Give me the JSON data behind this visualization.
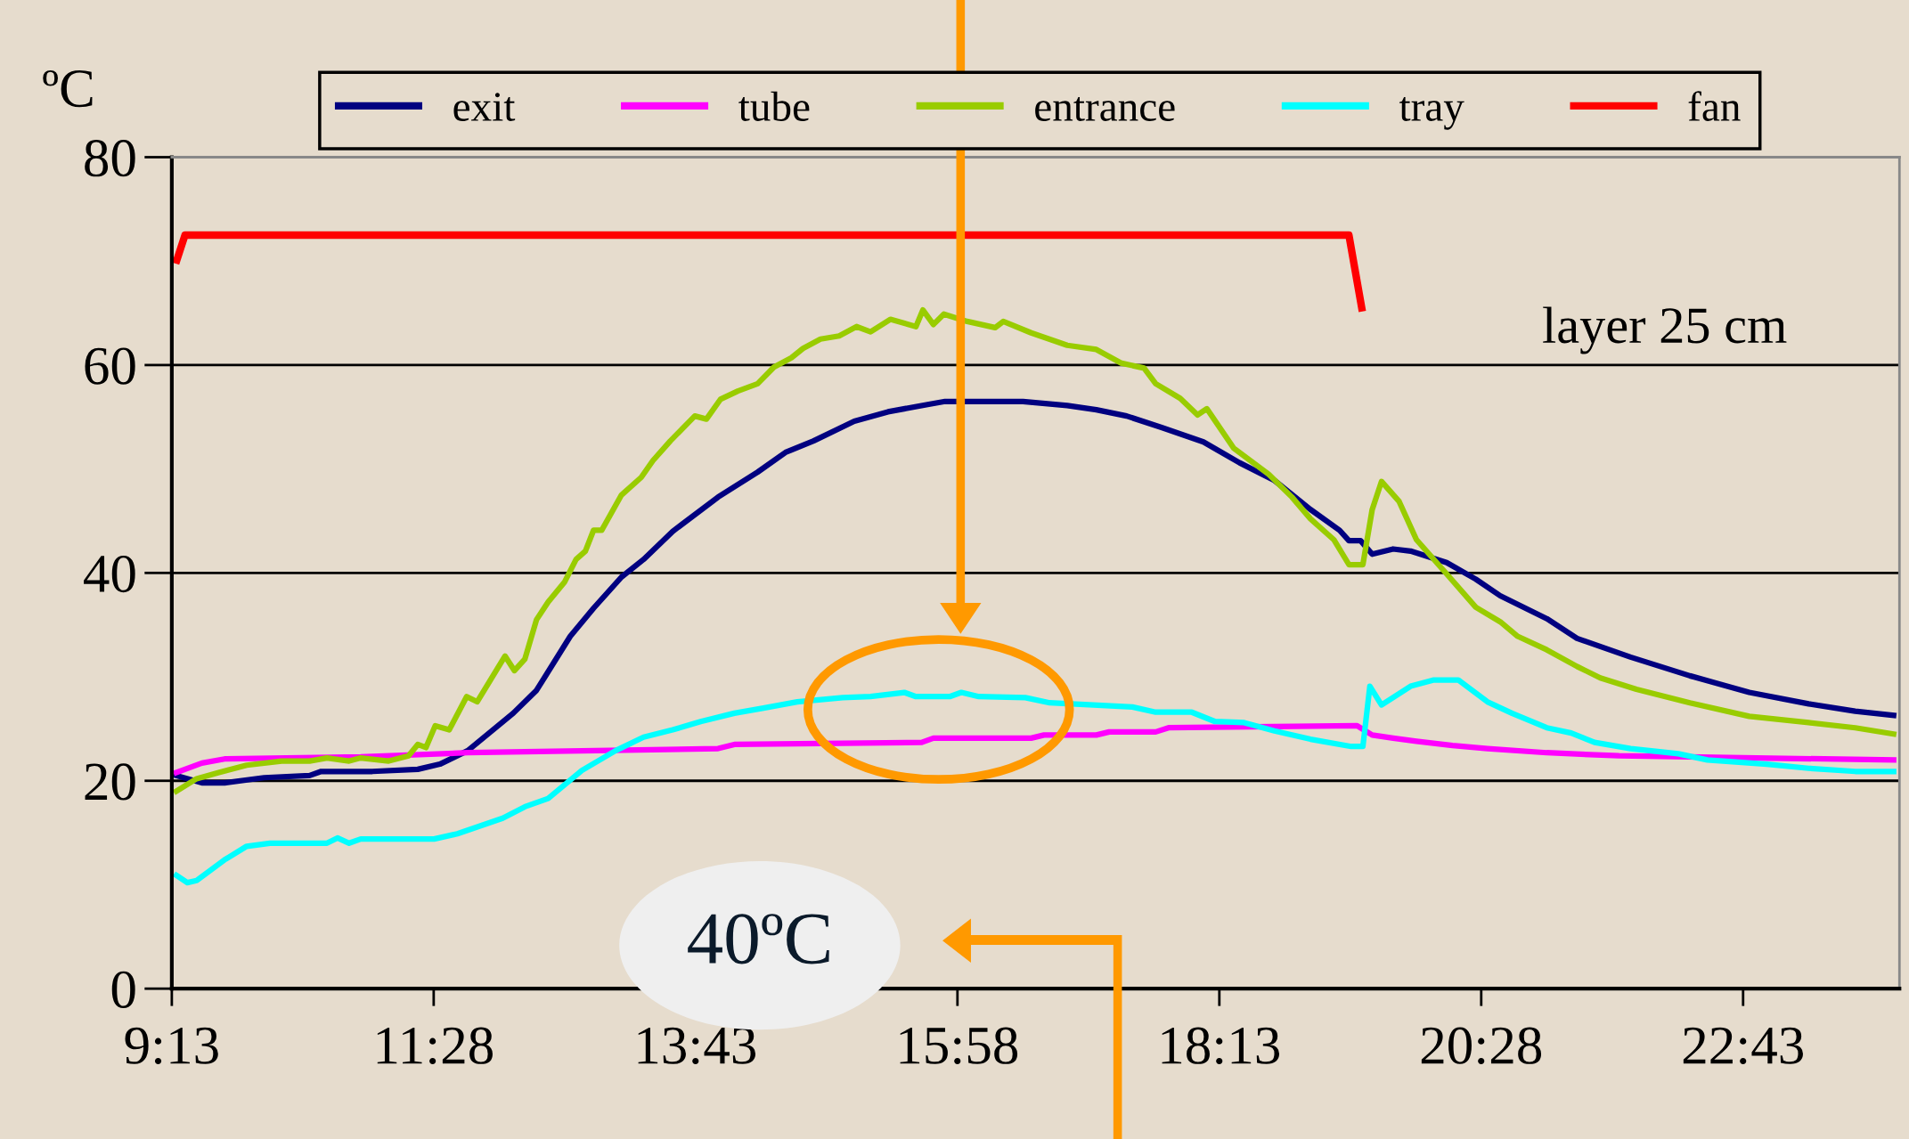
{
  "chart_data": {
    "type": "line",
    "ylabel": "ºC",
    "annotations": [
      "layer 25 cm",
      "40ºC"
    ],
    "xlim": [
      9.2167,
      24.06
    ],
    "ylim": [
      0,
      80
    ],
    "yticks": [
      0,
      20,
      40,
      60,
      80
    ],
    "xticks": [
      {
        "value": 9.2167,
        "label": "9:13"
      },
      {
        "value": 11.4667,
        "label": "11:28"
      },
      {
        "value": 13.7167,
        "label": "13:43"
      },
      {
        "value": 15.9667,
        "label": "15:58"
      },
      {
        "value": 18.2167,
        "label": "18:13"
      },
      {
        "value": 20.4667,
        "label": "20:28"
      },
      {
        "value": 22.7167,
        "label": "22:43"
      }
    ],
    "grid": "y",
    "legend": "top",
    "marker": "none",
    "line_style": "solid",
    "series": [
      {
        "name": "exit",
        "color": "#000080",
        "x": [
          9.256,
          9.475,
          9.67,
          10.01,
          10.4,
          10.5,
          10.94,
          11.33,
          11.52,
          11.76,
          12.15,
          12.35,
          12.64,
          12.84,
          13.08,
          13.27,
          13.52,
          13.91,
          14.25,
          14.49,
          14.73,
          15.08,
          15.37,
          15.71,
          15.86,
          16.53,
          16.91,
          17.16,
          17.42,
          17.72,
          18.08,
          18.39,
          18.69,
          19.0,
          19.25,
          19.33,
          19.43,
          19.53,
          19.71,
          19.86,
          20.17,
          20.42,
          20.63,
          21.03,
          21.29,
          21.75,
          22.26,
          22.77,
          23.28,
          23.68,
          24.01
        ],
        "values": [
          20.5,
          19.8,
          19.8,
          20.3,
          20.5,
          20.9,
          20.9,
          21.1,
          21.6,
          22.9,
          26.5,
          28.7,
          33.9,
          36.6,
          39.6,
          41.3,
          44.0,
          47.3,
          49.7,
          51.6,
          52.7,
          54.6,
          55.5,
          56.2,
          56.5,
          56.5,
          56.1,
          55.7,
          55.1,
          54.0,
          52.6,
          50.6,
          48.9,
          46.1,
          44.1,
          43.1,
          43.1,
          41.8,
          42.3,
          42.1,
          41.0,
          39.4,
          37.8,
          35.6,
          33.7,
          31.9,
          30.1,
          28.5,
          27.4,
          26.7,
          26.3
        ]
      },
      {
        "name": "tube",
        "color": "#ff00ff",
        "x": [
          9.256,
          9.475,
          9.67,
          10.84,
          11.76,
          13.91,
          14.05,
          15.66,
          15.76,
          16.6,
          16.71,
          17.16,
          17.27,
          17.67,
          17.78,
          19.4,
          19.53,
          19.71,
          19.91,
          20.22,
          20.52,
          21.03,
          21.65,
          24.01
        ],
        "values": [
          20.8,
          21.7,
          22.1,
          22.3,
          22.7,
          23.1,
          23.5,
          23.7,
          24.1,
          24.1,
          24.4,
          24.4,
          24.7,
          24.7,
          25.1,
          25.3,
          24.4,
          24.1,
          23.8,
          23.4,
          23.1,
          22.7,
          22.4,
          22.0
        ]
      },
      {
        "name": "entrance",
        "color": "#99cc00",
        "x": [
          9.256,
          9.43,
          9.62,
          9.86,
          10.16,
          10.4,
          10.55,
          10.74,
          10.84,
          11.08,
          11.25,
          11.33,
          11.4,
          11.48,
          11.6,
          11.75,
          11.84,
          12.08,
          12.16,
          12.25,
          12.35,
          12.45,
          12.59,
          12.69,
          12.77,
          12.84,
          12.91,
          13.08,
          13.25,
          13.35,
          13.5,
          13.71,
          13.81,
          13.93,
          14.08,
          14.25,
          14.39,
          14.54,
          14.64,
          14.79,
          14.95,
          15.1,
          15.22,
          15.39,
          15.61,
          15.67,
          15.76,
          15.85,
          16.05,
          16.29,
          16.36,
          16.6,
          16.91,
          17.16,
          17.37,
          17.57,
          17.67,
          17.88,
          18.03,
          18.11,
          18.34,
          18.64,
          18.84,
          19.0,
          19.2,
          19.33,
          19.45,
          19.53,
          19.61,
          19.76,
          19.91,
          20.17,
          20.42,
          20.63,
          20.78,
          21.03,
          21.29,
          21.49,
          21.8,
          22.26,
          22.77,
          23.28,
          23.68,
          24.01
        ],
        "values": [
          19.0,
          20.2,
          20.8,
          21.5,
          21.9,
          21.9,
          22.2,
          21.9,
          22.2,
          21.9,
          22.4,
          23.5,
          23.2,
          25.3,
          24.9,
          28.1,
          27.6,
          32.0,
          30.6,
          31.7,
          35.5,
          37.2,
          39.1,
          41.3,
          42.1,
          44.1,
          44.1,
          47.5,
          49.2,
          50.8,
          52.7,
          55.1,
          54.8,
          56.7,
          57.5,
          58.2,
          59.8,
          60.7,
          61.6,
          62.5,
          62.8,
          63.7,
          63.2,
          64.4,
          63.7,
          65.3,
          63.9,
          64.9,
          64.2,
          63.6,
          64.2,
          63.1,
          61.9,
          61.5,
          60.2,
          59.7,
          58.2,
          56.8,
          55.2,
          55.8,
          52.0,
          49.5,
          47.3,
          45.2,
          43.2,
          40.8,
          40.8,
          46.1,
          48.8,
          46.9,
          43.2,
          39.9,
          36.7,
          35.3,
          33.9,
          32.6,
          31.0,
          29.9,
          28.8,
          27.5,
          26.2,
          25.6,
          25.1,
          24.5
        ]
      },
      {
        "name": "tray",
        "color": "#00ffff",
        "x": [
          9.256,
          9.35,
          9.43,
          9.67,
          9.86,
          10.06,
          10.55,
          10.64,
          10.74,
          10.84,
          11.47,
          11.67,
          12.06,
          12.25,
          12.45,
          12.74,
          13.03,
          13.27,
          13.52,
          13.76,
          14.05,
          14.3,
          14.59,
          14.98,
          15.22,
          15.51,
          15.61,
          15.9,
          16.0,
          16.15,
          16.55,
          16.76,
          17.47,
          17.67,
          17.98,
          18.18,
          18.43,
          18.69,
          19.0,
          19.35,
          19.45,
          19.51,
          19.61,
          19.86,
          20.06,
          20.27,
          20.52,
          20.73,
          21.03,
          21.24,
          21.44,
          21.75,
          22.16,
          22.41,
          22.92,
          23.28,
          23.68,
          24.01
        ],
        "values": [
          10.9,
          10.2,
          10.4,
          12.4,
          13.7,
          14.0,
          14.0,
          14.5,
          14.0,
          14.4,
          14.4,
          14.9,
          16.4,
          17.5,
          18.3,
          21.0,
          22.9,
          24.2,
          24.9,
          25.7,
          26.5,
          27.0,
          27.6,
          28.0,
          28.1,
          28.5,
          28.1,
          28.1,
          28.5,
          28.1,
          28.0,
          27.5,
          27.1,
          26.6,
          26.6,
          25.7,
          25.6,
          24.8,
          24.0,
          23.3,
          23.3,
          29.1,
          27.3,
          29.1,
          29.7,
          29.7,
          27.6,
          26.5,
          25.1,
          24.6,
          23.7,
          23.1,
          22.6,
          22.0,
          21.6,
          21.2,
          20.9,
          20.9
        ]
      },
      {
        "name": "fan",
        "color": "#ff0000",
        "x": [
          9.26,
          9.33,
          19.33,
          19.44
        ],
        "values": [
          70.1,
          72.5,
          72.5,
          65.5
        ]
      }
    ]
  }
}
